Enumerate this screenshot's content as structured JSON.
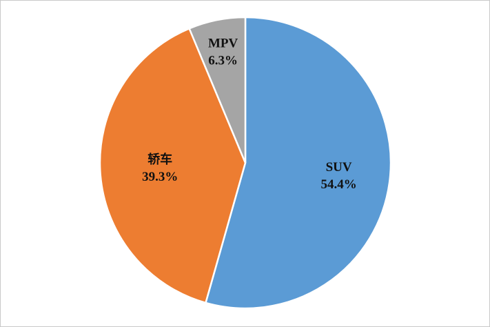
{
  "chart_data": {
    "type": "pie",
    "title": "",
    "start_angle_deg": 0,
    "direction": "clockwise",
    "legend": "none",
    "slices": [
      {
        "name": "SUV",
        "value": 54.4,
        "value_label": "54.4%",
        "color": "#5B9BD5"
      },
      {
        "name": "轿车",
        "value": 39.3,
        "value_label": "39.3%",
        "color": "#ED7D31"
      },
      {
        "name": "MPV",
        "value": 6.3,
        "value_label": "6.3%",
        "color": "#A5A5A5"
      }
    ]
  }
}
